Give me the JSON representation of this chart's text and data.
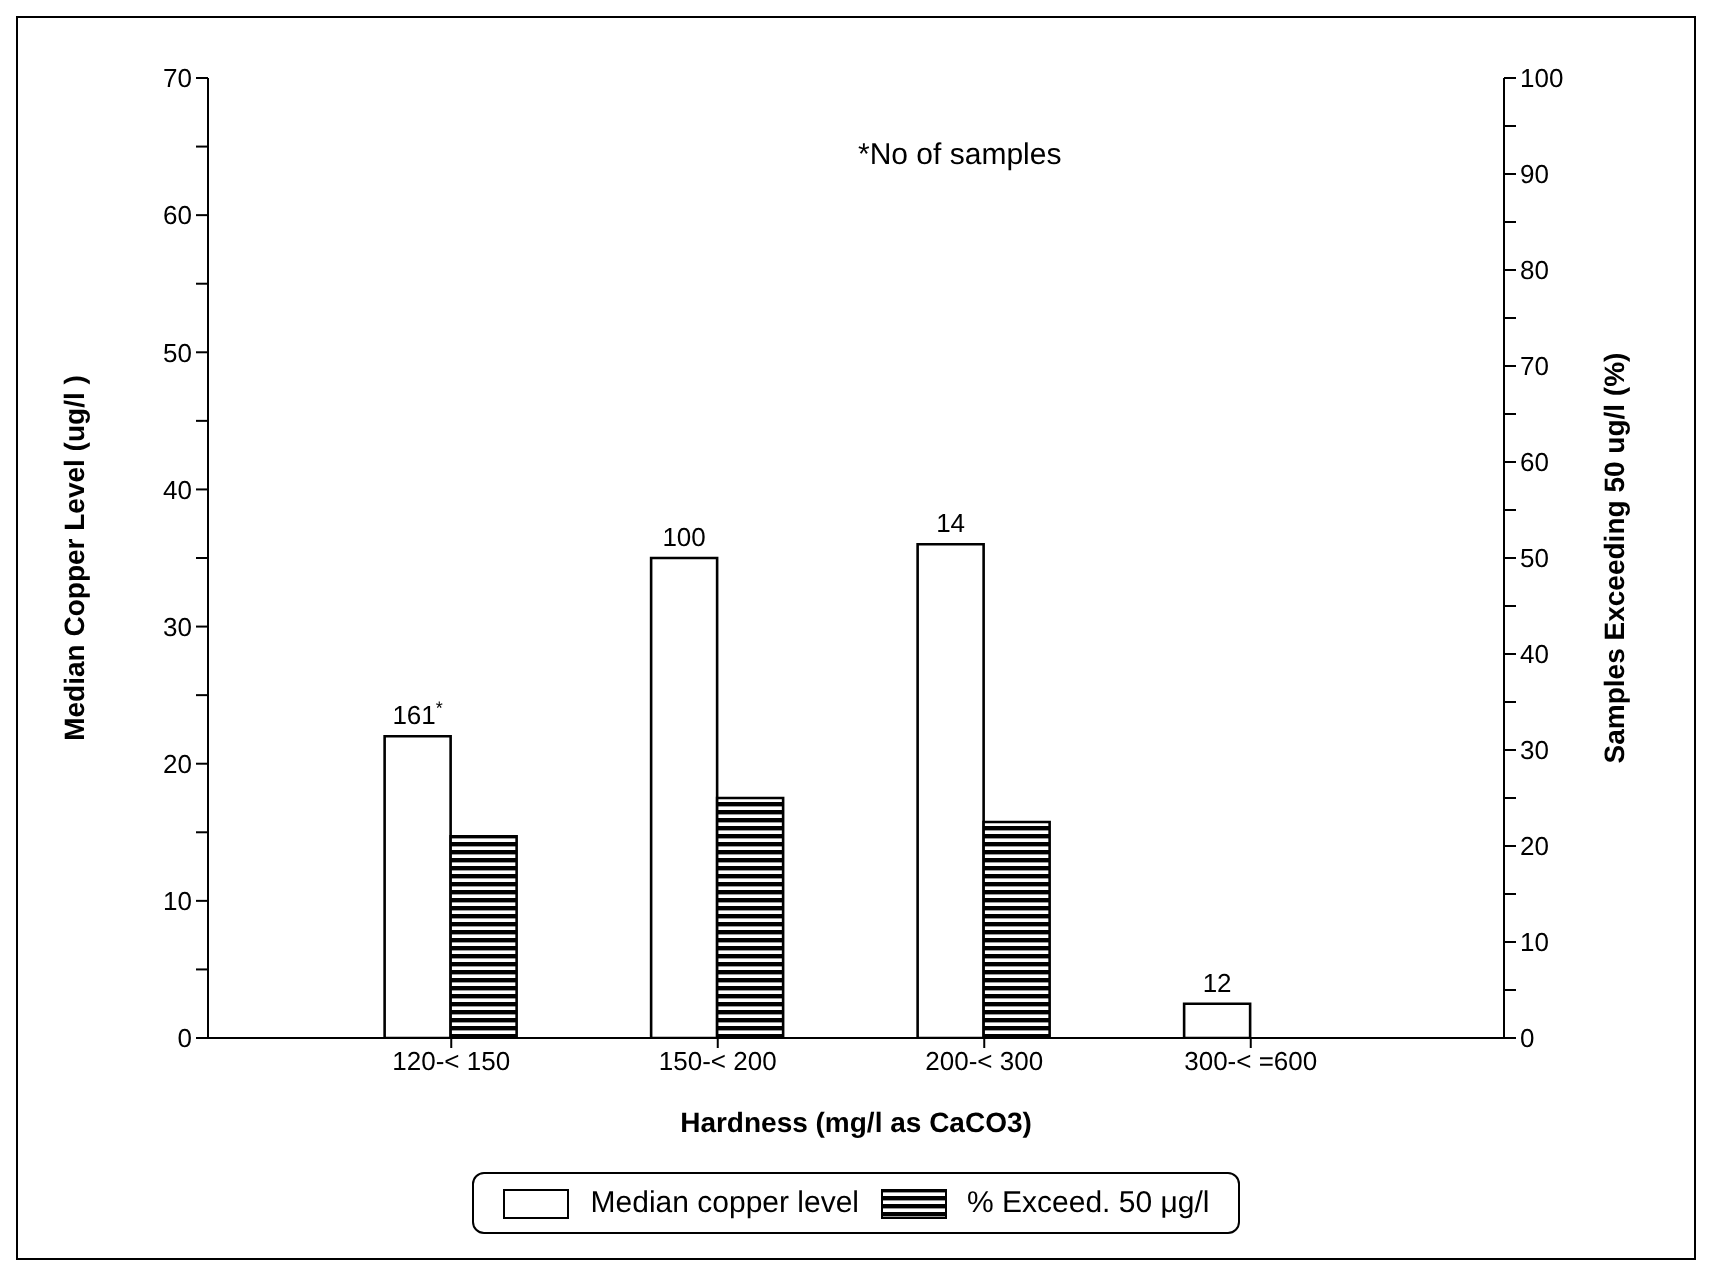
{
  "chart_data": {
    "type": "bar",
    "xlabel": "Hardness (mg/l  as CaCO3)",
    "ylabel": "Median Copper Level (ug/l )",
    "y2label": "Samples Exceeding 50 ug/l  (%)",
    "categories": [
      "120-< 150",
      "150-< 200",
      "200-< 300",
      "300-< =600"
    ],
    "series": [
      {
        "name": "Median copper level",
        "color": "#ffffff",
        "values": [
          22,
          35,
          36,
          2.5
        ]
      },
      {
        "name": "% Exceed. 50 μg/l",
        "color": "#000000",
        "axis": "y2",
        "values": [
          21,
          25,
          22.5,
          null
        ]
      }
    ],
    "ylim": [
      0,
      70
    ],
    "yticks": [
      0,
      {
        "value": 5,
        "label": null
      },
      10,
      {
        "value": 15,
        "label": null
      },
      20,
      {
        "value": 25,
        "label": null
      },
      30,
      {
        "value": 35,
        "label": null
      },
      40,
      {
        "value": 45,
        "label": null
      },
      50,
      {
        "value": 55,
        "label": null
      },
      60,
      {
        "value": 65,
        "label": null
      },
      70
    ],
    "y2lim": [
      0,
      100
    ],
    "y2ticks": [
      0,
      {
        "value": 5,
        "label": null
      },
      10,
      {
        "value": 15,
        "label": null
      },
      20,
      {
        "value": 25,
        "label": null
      },
      30,
      {
        "value": 35,
        "label": null
      },
      40,
      {
        "value": 45,
        "label": null
      },
      50,
      {
        "value": 55,
        "label": null
      },
      60,
      {
        "value": 65,
        "label": null
      },
      70,
      {
        "value": 75,
        "label": null
      },
      80,
      {
        "value": 85,
        "label": null
      },
      90,
      {
        "value": 95,
        "label": null
      },
      100
    ],
    "annotations": [
      "*No of samples",
      {
        "text": "161$^{*}$",
        "x": "120-< 150",
        "y": 22
      },
      {
        "text": "100",
        "x": "150-< 200",
        "y": 35
      },
      {
        "text": "14",
        "x": "200-< 300",
        "y": 36
      },
      {
        "text": "12",
        "x": "300-< =600",
        "y": 2.5
      }
    ],
    "legend": "bottom"
  }
}
